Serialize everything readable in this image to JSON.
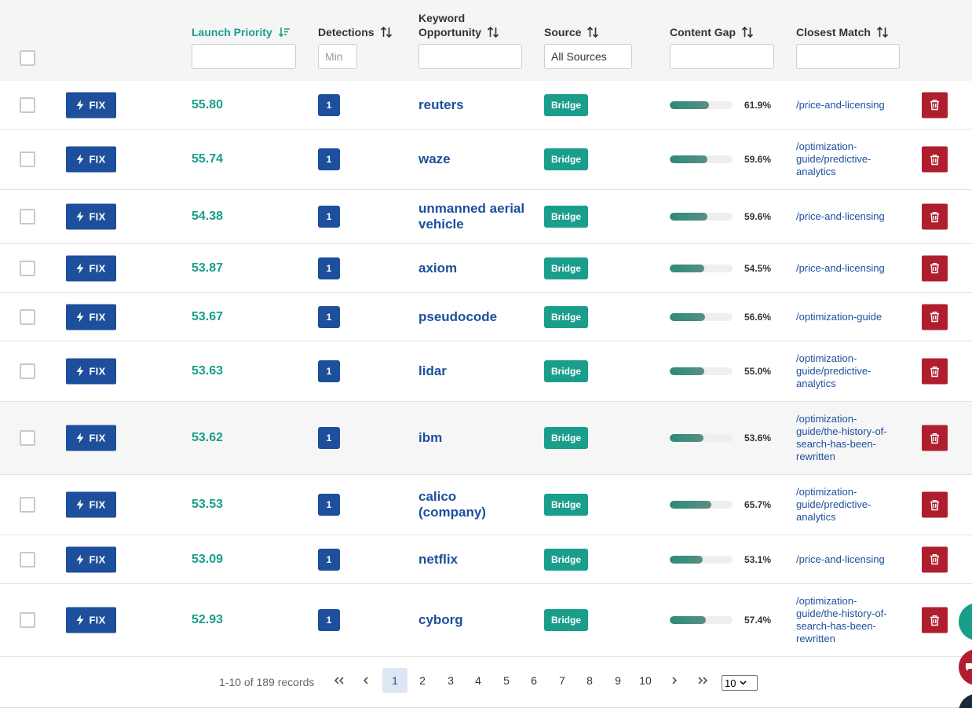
{
  "header": {
    "columns": {
      "launch_priority": "Launch Priority",
      "detections": "Detections",
      "keyword_line1": "Keyword",
      "keyword_line2": "Opportunity",
      "source": "Source",
      "content_gap": "Content Gap",
      "closest_match": "Closest Match"
    },
    "filters": {
      "detections_placeholder": "Min",
      "source_selected": "All Sources"
    }
  },
  "fix_label": "FIX",
  "rows": [
    {
      "priority": "55.80",
      "detections": "1",
      "keyword": "reuters",
      "source": "Bridge",
      "gap_pct": "61.9%",
      "gap_value": 61.9,
      "match": "/price-and-licensing"
    },
    {
      "priority": "55.74",
      "detections": "1",
      "keyword": "waze",
      "source": "Bridge",
      "gap_pct": "59.6%",
      "gap_value": 59.6,
      "match": "/optimization-guide/predictive-analytics"
    },
    {
      "priority": "54.38",
      "detections": "1",
      "keyword": "unmanned aerial vehicle",
      "source": "Bridge",
      "gap_pct": "59.6%",
      "gap_value": 59.6,
      "match": "/price-and-licensing"
    },
    {
      "priority": "53.87",
      "detections": "1",
      "keyword": "axiom",
      "source": "Bridge",
      "gap_pct": "54.5%",
      "gap_value": 54.5,
      "match": "/price-and-licensing"
    },
    {
      "priority": "53.67",
      "detections": "1",
      "keyword": "pseudocode",
      "source": "Bridge",
      "gap_pct": "56.6%",
      "gap_value": 56.6,
      "match": "/optimization-guide"
    },
    {
      "priority": "53.63",
      "detections": "1",
      "keyword": "lidar",
      "source": "Bridge",
      "gap_pct": "55.0%",
      "gap_value": 55.0,
      "match": "/optimization-guide/predictive-analytics"
    },
    {
      "priority": "53.62",
      "detections": "1",
      "keyword": "ibm",
      "source": "Bridge",
      "gap_pct": "53.6%",
      "gap_value": 53.6,
      "match": "/optimization-guide/the-history-of-search-has-been-rewritten"
    },
    {
      "priority": "53.53",
      "detections": "1",
      "keyword": "calico (company)",
      "source": "Bridge",
      "gap_pct": "65.7%",
      "gap_value": 65.7,
      "match": "/optimization-guide/predictive-analytics"
    },
    {
      "priority": "53.09",
      "detections": "1",
      "keyword": "netflix",
      "source": "Bridge",
      "gap_pct": "53.1%",
      "gap_value": 53.1,
      "match": "/price-and-licensing"
    },
    {
      "priority": "52.93",
      "detections": "1",
      "keyword": "cyborg",
      "source": "Bridge",
      "gap_pct": "57.4%",
      "gap_value": 57.4,
      "match": "/optimization-guide/the-history-of-search-has-been-rewritten"
    }
  ],
  "pagination": {
    "records_text": "1-10 of 189 records",
    "pages": [
      "1",
      "2",
      "3",
      "4",
      "5",
      "6",
      "7",
      "8",
      "9",
      "10"
    ],
    "current_page": "1",
    "page_size": "10"
  },
  "colors": {
    "primary_blue": "#1d4f9c",
    "teal": "#1a9e8c",
    "danger_red": "#b01e2e"
  },
  "icons": [
    "sort-desc-icon",
    "sort-both-icon",
    "lightning-icon",
    "trash-icon",
    "first-page-icon",
    "prev-page-icon",
    "next-page-icon",
    "last-page-icon",
    "chat-icon"
  ]
}
